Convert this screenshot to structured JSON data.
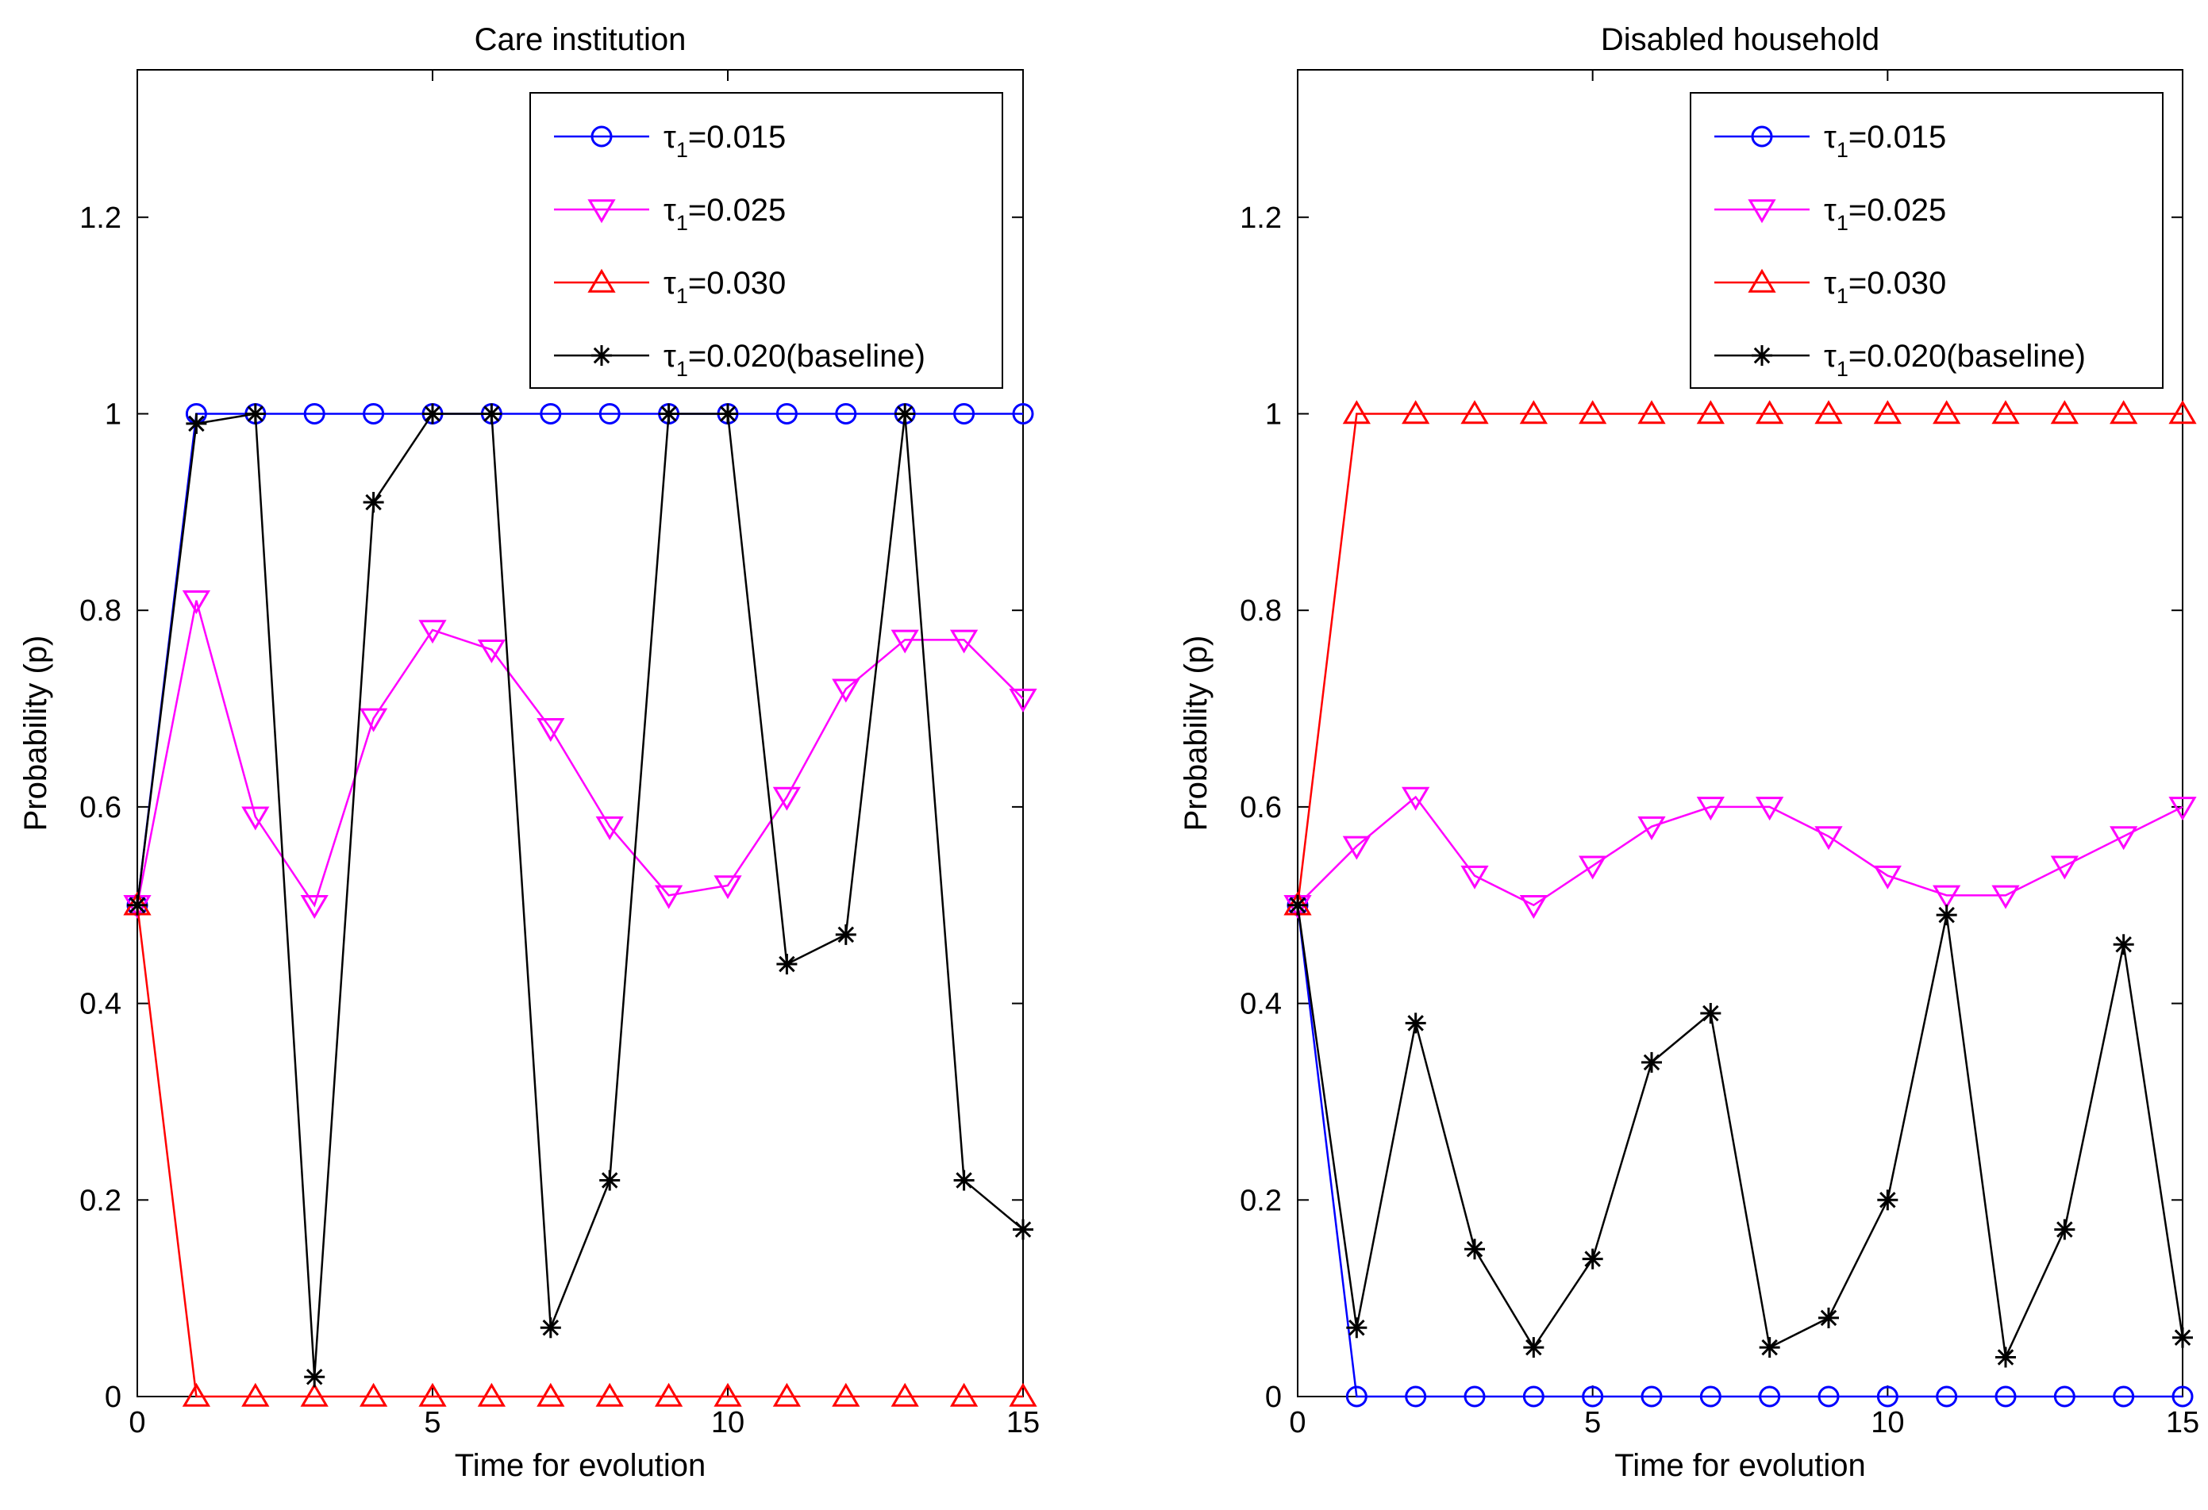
{
  "figure": {
    "panels": [
      "left",
      "right"
    ]
  },
  "chart_data": [
    {
      "type": "line",
      "title": "Care institution",
      "xlabel": "Time for evolution",
      "ylabel": "Probability (p)",
      "xlim": [
        0,
        15
      ],
      "ylim": [
        0,
        1.35
      ],
      "xticks": [
        0,
        5,
        10,
        15
      ],
      "xtick_labels": [
        "0",
        "5",
        "10",
        "15"
      ],
      "yticks": [
        0,
        0.2,
        0.4,
        0.6,
        0.8,
        1,
        1.2
      ],
      "ytick_labels": [
        "0",
        "0.2",
        "0.4",
        "0.6",
        "0.8",
        "1",
        "1.2"
      ],
      "legend_position": "top-right",
      "x": [
        0,
        1,
        2,
        3,
        4,
        5,
        6,
        7,
        8,
        9,
        10,
        11,
        12,
        13,
        14,
        15
      ],
      "series": [
        {
          "name": "τ1=0.015",
          "label_main": "τ",
          "label_sub": "1",
          "label_rest": "=0.015",
          "color": "#0000ff",
          "marker": "circle",
          "values": [
            0.5,
            1,
            1,
            1,
            1,
            1,
            1,
            1,
            1,
            1,
            1,
            1,
            1,
            1,
            1,
            1
          ]
        },
        {
          "name": "τ1=0.025",
          "label_main": "τ",
          "label_sub": "1",
          "label_rest": "=0.025",
          "color": "#ff00ff",
          "marker": "triangle-down",
          "values": [
            0.5,
            0.81,
            0.59,
            0.5,
            0.69,
            0.78,
            0.76,
            0.68,
            0.58,
            0.51,
            0.52,
            0.61,
            0.72,
            0.77,
            0.77,
            0.71
          ]
        },
        {
          "name": "τ1=0.030",
          "label_main": "τ",
          "label_sub": "1",
          "label_rest": "=0.030",
          "color": "#ff0000",
          "marker": "triangle-up",
          "values": [
            0.5,
            0,
            0,
            0,
            0,
            0,
            0,
            0,
            0,
            0,
            0,
            0,
            0,
            0,
            0,
            0
          ]
        },
        {
          "name": "τ1=0.020(baseline)",
          "label_main": "τ",
          "label_sub": "1",
          "label_rest": "=0.020(baseline)",
          "color": "#000000",
          "marker": "star",
          "values": [
            0.5,
            0.99,
            1.0,
            0.02,
            0.91,
            1.0,
            1.0,
            0.07,
            0.22,
            1.0,
            1.0,
            0.44,
            0.47,
            1.0,
            0.22,
            0.17
          ]
        }
      ]
    },
    {
      "type": "line",
      "title": "Disabled household",
      "xlabel": "Time for evolution",
      "ylabel": "Probability (p)",
      "xlim": [
        0,
        15
      ],
      "ylim": [
        0,
        1.35
      ],
      "xticks": [
        0,
        5,
        10,
        15
      ],
      "xtick_labels": [
        "0",
        "5",
        "10",
        "15"
      ],
      "yticks": [
        0,
        0.2,
        0.4,
        0.6,
        0.8,
        1,
        1.2
      ],
      "ytick_labels": [
        "0",
        "0.2",
        "0.4",
        "0.6",
        "0.8",
        "1",
        "1.2"
      ],
      "legend_position": "top-right",
      "x": [
        0,
        1,
        2,
        3,
        4,
        5,
        6,
        7,
        8,
        9,
        10,
        11,
        12,
        13,
        14,
        15
      ],
      "series": [
        {
          "name": "τ1=0.015",
          "label_main": "τ",
          "label_sub": "1",
          "label_rest": "=0.015",
          "color": "#0000ff",
          "marker": "circle",
          "values": [
            0.5,
            0,
            0,
            0,
            0,
            0,
            0,
            0,
            0,
            0,
            0,
            0,
            0,
            0,
            0,
            0
          ]
        },
        {
          "name": "τ1=0.025",
          "label_main": "τ",
          "label_sub": "1",
          "label_rest": "=0.025",
          "color": "#ff00ff",
          "marker": "triangle-down",
          "values": [
            0.5,
            0.56,
            0.61,
            0.53,
            0.5,
            0.54,
            0.58,
            0.6,
            0.6,
            0.57,
            0.53,
            0.51,
            0.51,
            0.54,
            0.57,
            0.6
          ]
        },
        {
          "name": "τ1=0.030",
          "label_main": "τ",
          "label_sub": "1",
          "label_rest": "=0.030",
          "color": "#ff0000",
          "marker": "triangle-up",
          "values": [
            0.5,
            1,
            1,
            1,
            1,
            1,
            1,
            1,
            1,
            1,
            1,
            1,
            1,
            1,
            1,
            1
          ]
        },
        {
          "name": "τ1=0.020(baseline)",
          "label_main": "τ",
          "label_sub": "1",
          "label_rest": "=0.020(baseline)",
          "color": "#000000",
          "marker": "star",
          "values": [
            0.5,
            0.07,
            0.38,
            0.15,
            0.05,
            0.14,
            0.34,
            0.39,
            0.05,
            0.08,
            0.2,
            0.49,
            0.04,
            0.17,
            0.46,
            0.06
          ]
        }
      ]
    }
  ]
}
